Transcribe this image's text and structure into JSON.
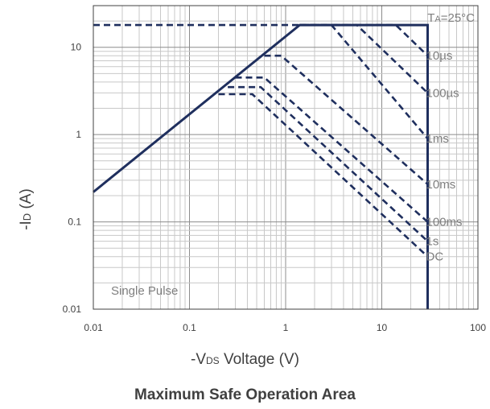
{
  "chart_data": {
    "type": "line",
    "title": "Maximum Safe Operation Area",
    "xlabel": {
      "prefix": "-V",
      "sub": "DS",
      "suffix": " Voltage (V)"
    },
    "ylabel": {
      "prefix": "-I",
      "sub": "D",
      "suffix": " (A)"
    },
    "x_scale": "log",
    "y_scale": "log",
    "xlim": [
      0.01,
      100
    ],
    "ylim": [
      0.01,
      30
    ],
    "x_ticks": [
      "0.01",
      "0.1",
      "1",
      "10",
      "100"
    ],
    "y_ticks": [
      "0.01",
      "0.1",
      "1",
      "10"
    ],
    "grid": true,
    "annotations": {
      "temperature": {
        "prefix": "T",
        "sub": "A",
        "suffix": "=25°C"
      },
      "pulse": "Single Pulse"
    },
    "colors": {
      "line": "#1f2f5e",
      "grid_major": "#8c8c8c",
      "grid_minor": "#c8c8c8",
      "axis": "#404040"
    },
    "boundary": {
      "name": "SOA limit",
      "style": "solid",
      "points": [
        [
          0.01,
          0.22
        ],
        [
          1.4,
          18
        ],
        [
          30,
          18
        ],
        [
          30,
          0.01
        ]
      ]
    },
    "series": [
      {
        "name": "10µs",
        "style": "dashed",
        "points": [
          [
            0.01,
            18
          ],
          [
            14,
            18
          ],
          [
            30,
            8
          ]
        ]
      },
      {
        "name": "100µs",
        "style": "dashed",
        "points": [
          [
            1.4,
            18
          ],
          [
            5.5,
            18
          ],
          [
            30,
            3
          ]
        ]
      },
      {
        "name": "1ms",
        "style": "dashed",
        "points": [
          [
            1.4,
            18
          ],
          [
            3,
            18
          ],
          [
            30,
            0.9
          ]
        ]
      },
      {
        "name": "10ms",
        "style": "dashed",
        "points": [
          [
            0.6,
            8
          ],
          [
            0.9,
            8
          ],
          [
            30,
            0.27
          ]
        ]
      },
      {
        "name": "100ms",
        "style": "dashed",
        "points": [
          [
            0.3,
            4.5
          ],
          [
            0.6,
            4.5
          ],
          [
            30,
            0.1
          ]
        ]
      },
      {
        "name": "1s",
        "style": "dashed",
        "points": [
          [
            0.25,
            3.5
          ],
          [
            0.55,
            3.5
          ],
          [
            30,
            0.06
          ]
        ]
      },
      {
        "name": "DC",
        "style": "dashed",
        "points": [
          [
            0.2,
            2.9
          ],
          [
            0.45,
            2.9
          ],
          [
            30,
            0.04
          ]
        ]
      }
    ]
  }
}
